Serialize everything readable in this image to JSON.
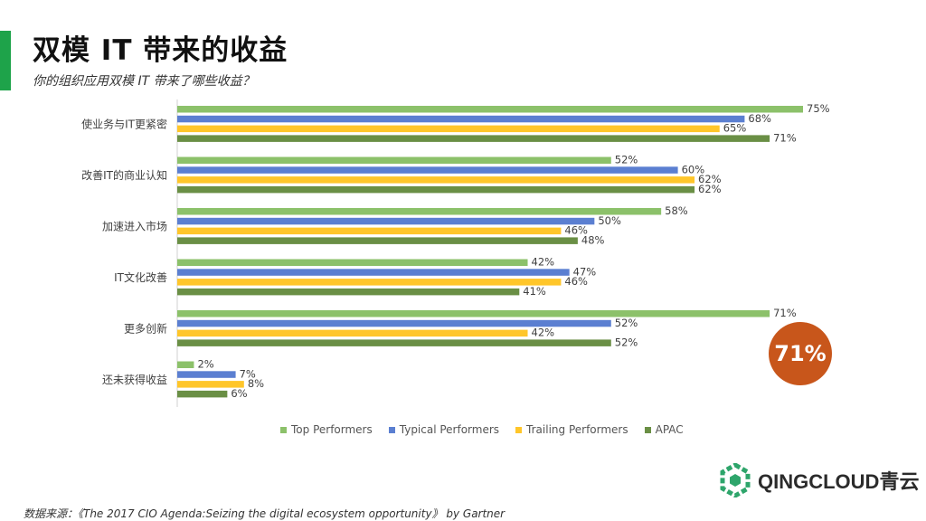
{
  "header": {
    "title": "双模 IT 带来的收益",
    "subtitle": "你的组织应用双模 IT 带来了哪些收益？"
  },
  "chart_data": {
    "type": "bar",
    "orientation": "horizontal",
    "categories": [
      "使业务与IT更紧密",
      "改善IT的商业认知",
      "加速进入市场",
      "IT文化改善",
      "更多创新",
      "还未获得收益"
    ],
    "series": [
      {
        "name": "Top Performers",
        "color": "#8cc16a",
        "values": [
          75,
          52,
          58,
          42,
          71,
          2
        ]
      },
      {
        "name": "Typical Performers",
        "color": "#5b7fd1",
        "values": [
          68,
          60,
          50,
          47,
          52,
          7
        ]
      },
      {
        "name": "Trailing Performers",
        "color": "#ffc62a",
        "values": [
          65,
          62,
          46,
          46,
          42,
          8
        ]
      },
      {
        "name": "APAC",
        "color": "#6a8f45",
        "values": [
          71,
          62,
          48,
          41,
          52,
          6
        ]
      }
    ],
    "value_suffix": "%",
    "xlim": [
      0,
      80
    ],
    "legend_position": "bottom"
  },
  "callout": {
    "text": "71%",
    "color": "#c8561b"
  },
  "logo": {
    "text": "QINGCLOUD青云"
  },
  "footer": {
    "text": "数据来源：《The 2017 CIO Agenda:Seizing the digital ecosystem opportunity》 by Gartner"
  }
}
